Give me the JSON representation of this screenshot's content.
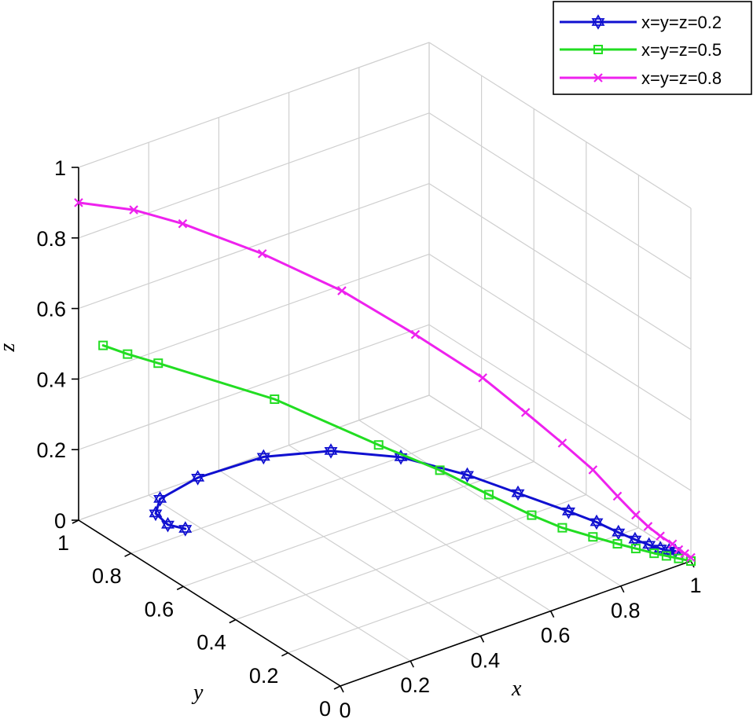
{
  "chart_data": {
    "type": "line3d",
    "xlabel": "x",
    "ylabel": "y",
    "zlabel": "z",
    "xlim": [
      0,
      1
    ],
    "ylim": [
      0,
      1
    ],
    "zlim": [
      0,
      1
    ],
    "xticks": [
      "0",
      "0.2",
      "0.4",
      "0.6",
      "0.8",
      "1"
    ],
    "yticks": [
      "0",
      "0.2",
      "0.4",
      "0.6",
      "0.8",
      "1"
    ],
    "zticks": [
      "0",
      "0.2",
      "0.4",
      "0.6",
      "0.8",
      "1"
    ],
    "grid": true,
    "legend_position": "top-right",
    "series": [
      {
        "name": "x=y=z=0.2",
        "color": "#1010d0",
        "marker": "hexagram",
        "points": [
          [
            0.17,
            0.82,
            0.0
          ],
          [
            0.15,
            0.86,
            0.0
          ],
          [
            0.16,
            0.92,
            0.0
          ],
          [
            0.21,
            0.97,
            0.0
          ],
          [
            0.34,
            1.0,
            0.0
          ],
          [
            0.52,
            0.99,
            0.0
          ],
          [
            0.66,
            0.92,
            0.0
          ],
          [
            0.77,
            0.8,
            0.0
          ],
          [
            0.84,
            0.64,
            0.0
          ],
          [
            0.88,
            0.5,
            0.0
          ],
          [
            0.92,
            0.36,
            0.0
          ],
          [
            0.94,
            0.28,
            0.0
          ],
          [
            0.95,
            0.21,
            0.0
          ],
          [
            0.96,
            0.16,
            0.0
          ],
          [
            0.97,
            0.12,
            0.0
          ],
          [
            0.98,
            0.09,
            0.0
          ],
          [
            0.99,
            0.07,
            0.0
          ],
          [
            1.0,
            0.06,
            0.0
          ]
        ]
      },
      {
        "name": "x=y=z=0.5",
        "color": "#22dd22",
        "marker": "square",
        "points": [
          [
            0.04,
            0.96,
            0.5
          ],
          [
            0.08,
            0.92,
            0.48
          ],
          [
            0.13,
            0.87,
            0.46
          ],
          [
            0.32,
            0.68,
            0.38
          ],
          [
            0.49,
            0.51,
            0.27
          ],
          [
            0.59,
            0.41,
            0.21
          ],
          [
            0.67,
            0.33,
            0.15
          ],
          [
            0.74,
            0.26,
            0.1
          ],
          [
            0.79,
            0.21,
            0.07
          ],
          [
            0.84,
            0.16,
            0.05
          ],
          [
            0.88,
            0.12,
            0.035
          ],
          [
            0.91,
            0.09,
            0.025
          ],
          [
            0.94,
            0.06,
            0.015
          ],
          [
            0.96,
            0.04,
            0.01
          ],
          [
            0.98,
            0.02,
            0.005
          ],
          [
            1.0,
            0.0,
            0.0
          ]
        ]
      },
      {
        "name": "x=y=z=0.8",
        "color": "#ee22ee",
        "marker": "x",
        "points": [
          [
            0.0,
            1.0,
            0.9
          ],
          [
            0.09,
            0.91,
            0.89
          ],
          [
            0.17,
            0.83,
            0.86
          ],
          [
            0.3,
            0.7,
            0.79
          ],
          [
            0.43,
            0.57,
            0.7
          ],
          [
            0.55,
            0.45,
            0.59
          ],
          [
            0.66,
            0.34,
            0.48
          ],
          [
            0.73,
            0.27,
            0.39
          ],
          [
            0.79,
            0.21,
            0.31
          ],
          [
            0.84,
            0.16,
            0.24
          ],
          [
            0.88,
            0.12,
            0.17
          ],
          [
            0.91,
            0.09,
            0.12
          ],
          [
            0.93,
            0.07,
            0.09
          ],
          [
            0.95,
            0.05,
            0.065
          ],
          [
            0.97,
            0.03,
            0.045
          ],
          [
            0.98,
            0.02,
            0.03
          ],
          [
            0.99,
            0.01,
            0.02
          ],
          [
            1.0,
            0.0,
            0.01
          ]
        ]
      }
    ]
  }
}
